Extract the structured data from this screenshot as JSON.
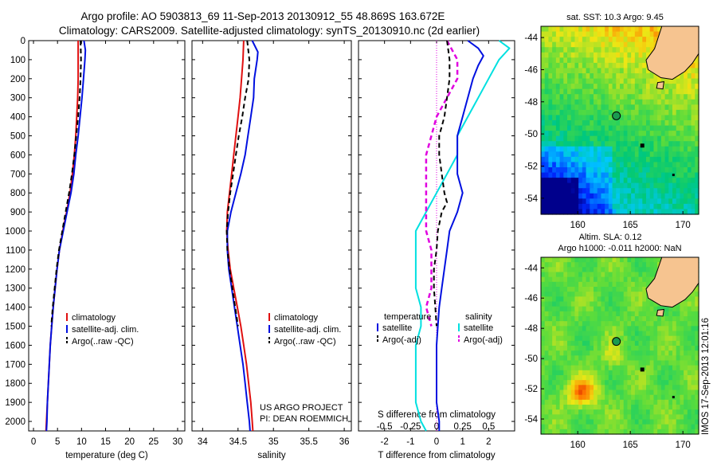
{
  "header": {
    "line1": "Argo profile: AO 5903813_69 11-Sep-2013 20130912_55 48.869S 163.672E",
    "line2": "Climatology: CARS2009. Satellite-adjusted climatology: synTS_20130910.nc (2d earlier)"
  },
  "colors": {
    "climatology": "#e01010",
    "satellite": "#0010e0",
    "argo": "#000000",
    "sal_satellite": "#00e0e0",
    "sal_argo": "#e000e0",
    "land": "#f6c490"
  },
  "yaxis": {
    "ticks": [
      0,
      100,
      200,
      300,
      400,
      500,
      600,
      700,
      800,
      900,
      1000,
      1100,
      1200,
      1300,
      1400,
      1500,
      1600,
      1700,
      1800,
      1900,
      2000
    ],
    "range": [
      0,
      2050
    ]
  },
  "panels": {
    "temperature": {
      "xlabel": "temperature (deg C)",
      "ticks": [
        0,
        5,
        10,
        15,
        20,
        25,
        30
      ],
      "xlim": [
        -1,
        31.5
      ],
      "legend": [
        "climatology",
        "satellite-adj. clim.",
        "Argo(..raw -QC)"
      ]
    },
    "salinity": {
      "xlabel": "salinity",
      "ticks": [
        "34",
        "34.5",
        "35",
        "35.5",
        "36"
      ],
      "tick_values": [
        34,
        34.5,
        35,
        35.5,
        36
      ],
      "xlim": [
        33.85,
        36.1
      ],
      "legend": [
        "climatology",
        "satellite-adj. clim.",
        "Argo(..raw -QC)"
      ],
      "credit1": "US ARGO PROJECT",
      "credit2": "PI: DEAN ROEMMICH"
    },
    "difference": {
      "xlabel": "T difference from climatology",
      "xlabel_s": "S difference from climatology",
      "ticks_t": [
        "-2",
        "-1",
        "0",
        "1",
        "2"
      ],
      "ticks_t_values": [
        -2,
        -1,
        0,
        1,
        2
      ],
      "ticks_s": [
        "-0.5",
        "-0.25",
        "0",
        "0.25",
        "0.5"
      ],
      "ticks_s_values": [
        -0.5,
        -0.25,
        0,
        0.25,
        0.5
      ],
      "xlim_t": [
        -3,
        3
      ],
      "legend_temp_title": "temperature",
      "legend_sal_title": "salinity",
      "legend_sat": "satellite",
      "legend_argo": "Argo(-adj)"
    }
  },
  "maps": {
    "sst": {
      "title": "sat. SST: 10.3 Argo: 9.45"
    },
    "sla": {
      "title1": "Altim. SLA: 0.12",
      "title2": "Argo h1000: -0.011 h2000: NaN"
    },
    "lon_ticks": [
      "160",
      "165",
      "170"
    ],
    "lon_values": [
      160,
      165,
      170
    ],
    "lat_ticks": [
      "-44",
      "-46",
      "-48",
      "-50",
      "-52",
      "-54"
    ],
    "lat_values": [
      -44,
      -46,
      -48,
      -50,
      -52,
      -54
    ],
    "lon_range": [
      156.5,
      171.5
    ],
    "lat_range": [
      -43.3,
      -55
    ],
    "argo_position": {
      "lon": 163.672,
      "lat": -48.869
    }
  },
  "watermark": "IMOS 17-Sep-2013 12:01:16",
  "chart_data": [
    {
      "type": "line",
      "title": "",
      "xlabel": "temperature (deg C)",
      "ylabel": "",
      "xlim": [
        -1,
        31.5
      ],
      "ylim": [
        2050,
        0
      ],
      "series": [
        {
          "name": "climatology",
          "points": [
            [
              9.3,
              0
            ],
            [
              9.3,
              100
            ],
            [
              9.3,
              200
            ],
            [
              9.2,
              300
            ],
            [
              9.0,
              400
            ],
            [
              8.8,
              500
            ],
            [
              8.5,
              600
            ],
            [
              8.1,
              700
            ],
            [
              7.6,
              800
            ],
            [
              6.9,
              900
            ],
            [
              6.1,
              1000
            ],
            [
              5.4,
              1100
            ],
            [
              4.9,
              1200
            ],
            [
              4.5,
              1300
            ],
            [
              4.1,
              1400
            ],
            [
              3.8,
              1500
            ],
            [
              3.5,
              1600
            ],
            [
              3.3,
              1700
            ],
            [
              3.1,
              1800
            ],
            [
              2.9,
              1900
            ],
            [
              2.7,
              2000
            ],
            [
              2.6,
              2050
            ]
          ]
        },
        {
          "name": "satellite-adj. clim.",
          "points": [
            [
              10.5,
              0
            ],
            [
              10.8,
              50
            ],
            [
              10.7,
              100
            ],
            [
              10.4,
              200
            ],
            [
              10.1,
              300
            ],
            [
              9.7,
              400
            ],
            [
              9.3,
              500
            ],
            [
              8.8,
              600
            ],
            [
              8.4,
              700
            ],
            [
              7.8,
              800
            ],
            [
              7.0,
              900
            ],
            [
              6.2,
              1000
            ],
            [
              5.4,
              1100
            ],
            [
              4.9,
              1200
            ],
            [
              4.5,
              1300
            ],
            [
              4.1,
              1400
            ],
            [
              3.8,
              1500
            ],
            [
              3.5,
              1600
            ],
            [
              3.3,
              1700
            ],
            [
              3.1,
              1800
            ],
            [
              2.9,
              1900
            ],
            [
              2.8,
              2000
            ],
            [
              2.7,
              2050
            ]
          ]
        },
        {
          "name": "Argo(..raw -QC)",
          "points": [
            [
              9.8,
              0
            ],
            [
              9.9,
              100
            ],
            [
              9.8,
              200
            ],
            [
              9.6,
              300
            ],
            [
              9.3,
              400
            ],
            [
              8.9,
              500
            ],
            [
              8.5,
              600
            ],
            [
              8.0,
              700
            ],
            [
              7.4,
              800
            ],
            [
              6.7,
              900
            ],
            [
              6.0,
              1000
            ],
            [
              5.3,
              1100
            ],
            [
              4.8,
              1200
            ],
            [
              4.4,
              1300
            ],
            [
              4.0,
              1400
            ],
            [
              3.7,
              1500
            ]
          ]
        }
      ]
    },
    {
      "type": "line",
      "title": "",
      "xlabel": "salinity",
      "ylabel": "",
      "xlim": [
        33.85,
        36.1
      ],
      "ylim": [
        2050,
        0
      ],
      "series": [
        {
          "name": "climatology",
          "points": [
            [
              34.58,
              0
            ],
            [
              34.57,
              100
            ],
            [
              34.55,
              200
            ],
            [
              34.53,
              300
            ],
            [
              34.5,
              400
            ],
            [
              34.47,
              500
            ],
            [
              34.44,
              600
            ],
            [
              34.41,
              700
            ],
            [
              34.38,
              800
            ],
            [
              34.35,
              900
            ],
            [
              34.34,
              1000
            ],
            [
              34.36,
              1100
            ],
            [
              34.39,
              1200
            ],
            [
              34.44,
              1300
            ],
            [
              34.49,
              1400
            ],
            [
              34.54,
              1500
            ],
            [
              34.58,
              1600
            ],
            [
              34.62,
              1700
            ],
            [
              34.65,
              1800
            ],
            [
              34.68,
              1900
            ],
            [
              34.7,
              2000
            ],
            [
              34.71,
              2050
            ]
          ]
        },
        {
          "name": "satellite-adj. clim.",
          "points": [
            [
              34.7,
              0
            ],
            [
              34.78,
              60
            ],
            [
              34.77,
              100
            ],
            [
              34.73,
              200
            ],
            [
              34.72,
              300
            ],
            [
              34.68,
              400
            ],
            [
              34.64,
              500
            ],
            [
              34.6,
              600
            ],
            [
              34.54,
              700
            ],
            [
              34.47,
              800
            ],
            [
              34.4,
              900
            ],
            [
              34.35,
              1000
            ],
            [
              34.35,
              1100
            ],
            [
              34.37,
              1200
            ],
            [
              34.41,
              1300
            ],
            [
              34.45,
              1400
            ],
            [
              34.49,
              1500
            ],
            [
              34.53,
              1600
            ],
            [
              34.57,
              1700
            ],
            [
              34.6,
              1800
            ],
            [
              34.63,
              1900
            ],
            [
              34.66,
              2000
            ],
            [
              34.67,
              2050
            ]
          ]
        },
        {
          "name": "Argo(..raw -QC)",
          "points": [
            [
              34.63,
              0
            ],
            [
              34.66,
              100
            ],
            [
              34.65,
              200
            ],
            [
              34.6,
              300
            ],
            [
              34.56,
              400
            ],
            [
              34.51,
              500
            ],
            [
              34.47,
              600
            ],
            [
              34.43,
              700
            ],
            [
              34.39,
              800
            ],
            [
              34.36,
              900
            ],
            [
              34.34,
              1000
            ],
            [
              34.35,
              1100
            ],
            [
              34.38,
              1200
            ],
            [
              34.42,
              1300
            ],
            [
              34.46,
              1400
            ],
            [
              34.5,
              1500
            ]
          ]
        }
      ]
    },
    {
      "type": "line",
      "title": "",
      "xlabel": "T difference from climatology",
      "ylabel": "",
      "xlim": [
        -3,
        3
      ],
      "ylim": [
        2050,
        0
      ],
      "series": [
        {
          "name": "temperature satellite",
          "points": [
            [
              1.2,
              0
            ],
            [
              1.6,
              40
            ],
            [
              1.8,
              80
            ],
            [
              1.6,
              130
            ],
            [
              1.4,
              200
            ],
            [
              1.2,
              300
            ],
            [
              1.0,
              400
            ],
            [
              0.8,
              500
            ],
            [
              0.8,
              600
            ],
            [
              0.8,
              700
            ],
            [
              1.0,
              800
            ],
            [
              0.8,
              900
            ],
            [
              0.5,
              1000
            ],
            [
              0.4,
              1100
            ],
            [
              0.3,
              1200
            ],
            [
              0.2,
              1300
            ],
            [
              0.1,
              1400
            ],
            [
              0.05,
              1500
            ],
            [
              0.0,
              1600
            ],
            [
              0.0,
              1700
            ],
            [
              0.0,
              1800
            ],
            [
              0.0,
              1900
            ],
            [
              0.1,
              2000
            ],
            [
              0.1,
              2050
            ]
          ]
        },
        {
          "name": "temperature Argo(-adj)",
          "points": [
            [
              0.4,
              0
            ],
            [
              0.5,
              100
            ],
            [
              0.5,
              200
            ],
            [
              0.4,
              300
            ],
            [
              0.3,
              400
            ],
            [
              0.1,
              500
            ],
            [
              0.1,
              600
            ],
            [
              0.2,
              700
            ],
            [
              0.3,
              800
            ],
            [
              0.4,
              850
            ],
            [
              0.2,
              900
            ],
            [
              0.05,
              1000
            ],
            [
              0.0,
              1100
            ],
            [
              -0.1,
              1200
            ],
            [
              -0.1,
              1300
            ],
            [
              -0.05,
              1400
            ],
            [
              0.0,
              1500
            ]
          ]
        },
        {
          "name": "salinity satellite",
          "points": [
            [
              0.6,
              0
            ],
            [
              0.7,
              40
            ],
            [
              0.6,
              100
            ],
            [
              0.5,
              200
            ],
            [
              0.4,
              300
            ],
            [
              0.3,
              400
            ],
            [
              0.2,
              500
            ],
            [
              0.2,
              600
            ],
            [
              0.1,
              700
            ],
            [
              0.0,
              800
            ],
            [
              -0.1,
              900
            ],
            [
              -0.2,
              1000
            ],
            [
              -0.2,
              1100
            ],
            [
              -0.2,
              1200
            ],
            [
              -0.2,
              1300
            ],
            [
              -0.15,
              1400
            ],
            [
              -0.15,
              1500
            ],
            [
              -0.2,
              1600
            ],
            [
              -0.2,
              1700
            ],
            [
              -0.2,
              1800
            ],
            [
              -0.2,
              1900
            ],
            [
              -0.15,
              2000
            ],
            [
              -0.1,
              2050
            ]
          ]
        },
        {
          "name": "salinity Argo(-adj)",
          "points": [
            [
              0.1,
              0
            ],
            [
              0.2,
              100
            ],
            [
              0.2,
              200
            ],
            [
              0.1,
              300
            ],
            [
              0.0,
              400
            ],
            [
              -0.05,
              500
            ],
            [
              -0.1,
              600
            ],
            [
              -0.1,
              700
            ],
            [
              -0.1,
              800
            ],
            [
              -0.1,
              900
            ],
            [
              -0.1,
              1000
            ],
            [
              -0.05,
              1100
            ],
            [
              -0.05,
              1200
            ],
            [
              -0.05,
              1300
            ],
            [
              -0.1,
              1400
            ],
            [
              -0.05,
              1500
            ]
          ]
        }
      ]
    }
  ]
}
